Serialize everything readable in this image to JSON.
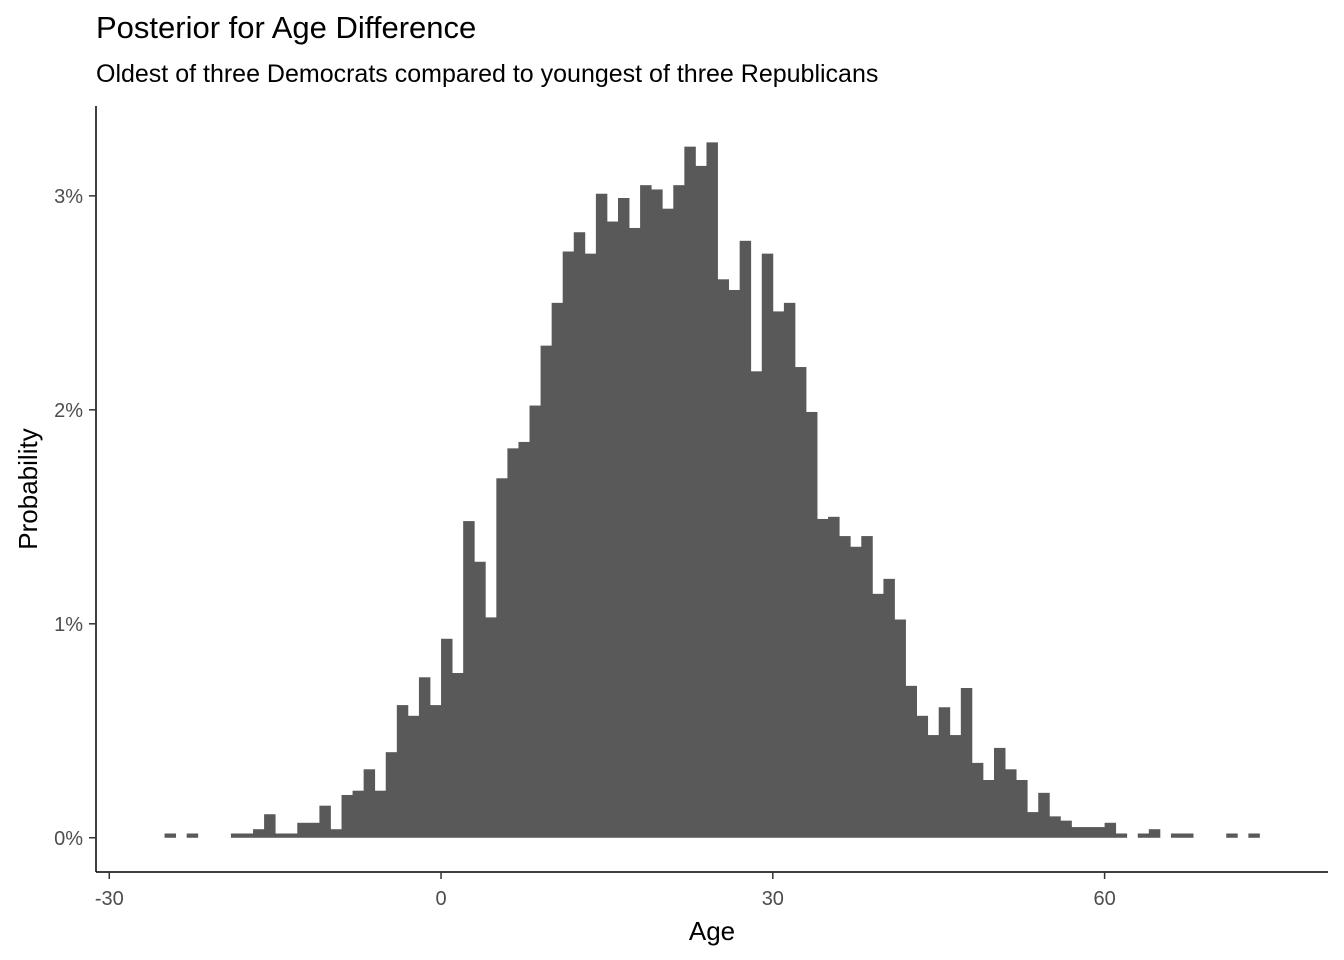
{
  "chart_data": {
    "type": "bar",
    "subtype": "histogram",
    "title": "Posterior for Age Difference",
    "subtitle": "Oldest of three Democrats compared to youngest of three Republicans",
    "xlabel": "Age",
    "ylabel": "Probability",
    "xlim": [
      -31.2,
      80.2
    ],
    "ylim": [
      -0.0016,
      0.0342
    ],
    "x_ticks": [
      -30,
      0,
      30,
      60
    ],
    "x_tick_labels": [
      "-30",
      "0",
      "30",
      "60"
    ],
    "y_ticks": [
      0,
      0.01,
      0.02,
      0.03
    ],
    "y_tick_labels": [
      "0%",
      "1%",
      "2%",
      "3%"
    ],
    "grid": false,
    "legend": "none",
    "bar_color": "#595959",
    "bin_width": 1,
    "bin_start": -25,
    "values": [
      0.0002,
      0.0,
      0.0002,
      0.0,
      0.0,
      0.0,
      0.0002,
      0.0002,
      0.0004,
      0.0011,
      0.0002,
      0.0002,
      0.0007,
      0.0007,
      0.0015,
      0.0004,
      0.002,
      0.0022,
      0.0032,
      0.0022,
      0.004,
      0.0062,
      0.0057,
      0.0075,
      0.0062,
      0.0093,
      0.0077,
      0.0148,
      0.0129,
      0.0103,
      0.0168,
      0.0182,
      0.0185,
      0.0202,
      0.023,
      0.025,
      0.0274,
      0.0283,
      0.0273,
      0.0301,
      0.0288,
      0.0299,
      0.0285,
      0.0305,
      0.0303,
      0.0294,
      0.0305,
      0.0323,
      0.0314,
      0.0325,
      0.0261,
      0.0256,
      0.0279,
      0.0218,
      0.0273,
      0.0246,
      0.025,
      0.022,
      0.0199,
      0.0149,
      0.015,
      0.0141,
      0.0136,
      0.0141,
      0.0114,
      0.0121,
      0.0102,
      0.0071,
      0.0057,
      0.0048,
      0.0061,
      0.0048,
      0.007,
      0.0035,
      0.0027,
      0.0042,
      0.0032,
      0.0027,
      0.0012,
      0.0021,
      0.001,
      0.0008,
      0.0005,
      0.0005,
      0.0005,
      0.0007,
      0.0002,
      0.0,
      0.0002,
      0.0004,
      0.0,
      0.0002,
      0.0002,
      0.0,
      0.0,
      0.0,
      0.0002,
      0.0,
      0.0002
    ]
  }
}
